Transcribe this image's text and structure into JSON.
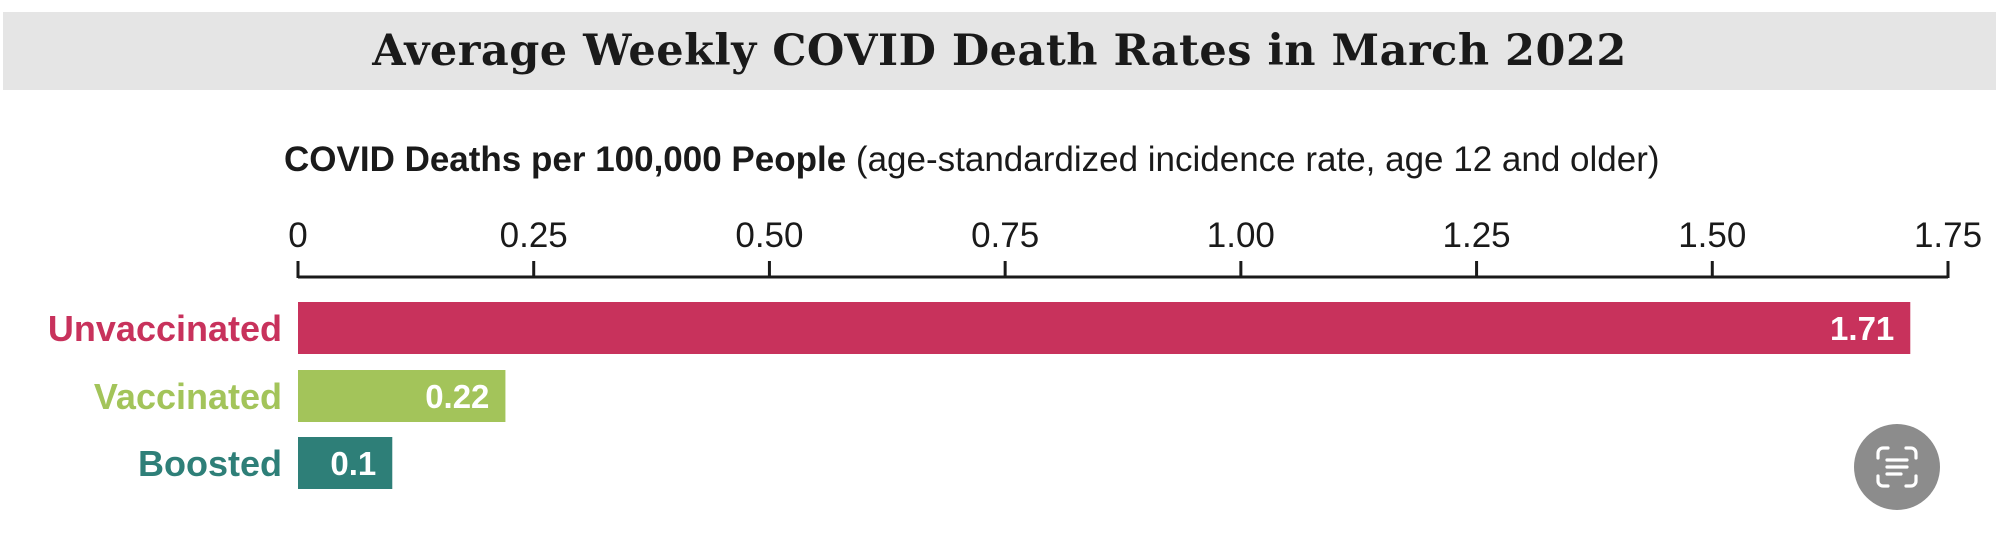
{
  "title": "Average Weekly COVID Death Rates in March 2022",
  "chart_data": {
    "type": "bar",
    "orientation": "horizontal",
    "title": "Average Weekly COVID Death Rates in March 2022",
    "xlabel_bold": "COVID Deaths per 100,000 People",
    "xlabel_note": "(age-standardized incidence rate, age 12 and older)",
    "xlim": [
      0,
      1.75
    ],
    "xticks": [
      "0",
      "0.25",
      "0.50",
      "0.75",
      "1.00",
      "1.25",
      "1.50",
      "1.75"
    ],
    "tick_values": [
      0,
      0.25,
      0.5,
      0.75,
      1.0,
      1.25,
      1.5,
      1.75
    ],
    "axis_position": "top",
    "categories": [
      "Unvaccinated",
      "Vaccinated",
      "Boosted"
    ],
    "values": [
      1.71,
      0.22,
      0.1
    ],
    "value_labels": [
      "1.71",
      "0.22",
      "0.1"
    ],
    "colors": [
      "#c8325c",
      "#a3c45a",
      "#2e7f78"
    ]
  },
  "colors": {
    "title_band": "#e5e5e5",
    "axis": "#1a1a1a",
    "scan_button": "#8c8c8c"
  },
  "scan_button": {
    "icon": "scan-text-icon"
  }
}
